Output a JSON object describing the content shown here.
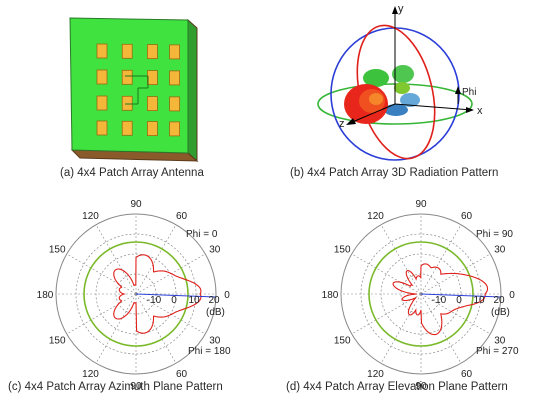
{
  "panels": {
    "a": {
      "caption": "(a) 4x4 Patch Array Antenna",
      "colors": {
        "substrate": "#3fe23f",
        "substrate_side": "#2f9e2f",
        "ground_edge": "#8a5a2b",
        "patch": "#f5b73a",
        "feed": "#1a7a1a"
      }
    },
    "b": {
      "caption": "(b) 4x4 Patch Array 3D Radiation Pattern",
      "axis_labels": {
        "y": "y",
        "x": "x",
        "z": "z",
        "phi": "Phi"
      },
      "colors": {
        "ring_red": "#e0201a",
        "ring_blue": "#2b3fd8",
        "ring_green": "#36b536"
      }
    },
    "c": {
      "caption": "(c) 4x4 Patch Array Azimuth Plane Pattern",
      "phi_top": "Phi = 0",
      "phi_bottom": "Phi = 180"
    },
    "d": {
      "caption": "(d) 4x4 Patch Array Elevation Plane Pattern",
      "phi_top": "Phi = 90",
      "phi_bottom": "Phi = 270"
    },
    "polar": {
      "angle_labels": [
        {
          "deg": 90,
          "text": "90"
        },
        {
          "deg": 60,
          "text": "60"
        },
        {
          "deg": 30,
          "text": "30"
        },
        {
          "deg": 0,
          "text": "0"
        },
        {
          "deg": 120,
          "text": "120"
        },
        {
          "deg": 150,
          "text": "150"
        },
        {
          "deg": 180,
          "text": "180"
        },
        {
          "deg": 210,
          "text": "150"
        },
        {
          "deg": 240,
          "text": "120"
        },
        {
          "deg": 270,
          "text": "90"
        },
        {
          "deg": 300,
          "text": "60"
        },
        {
          "deg": 330,
          "text": "30"
        }
      ],
      "radial_ticks": [
        "-10",
        "0",
        "10",
        "20"
      ],
      "unit": "(dB)",
      "colors": {
        "pattern": "#e0201a",
        "ring_green": "#7ab92a",
        "reference": "#2b3fd8",
        "grid": "#888888"
      }
    }
  }
}
